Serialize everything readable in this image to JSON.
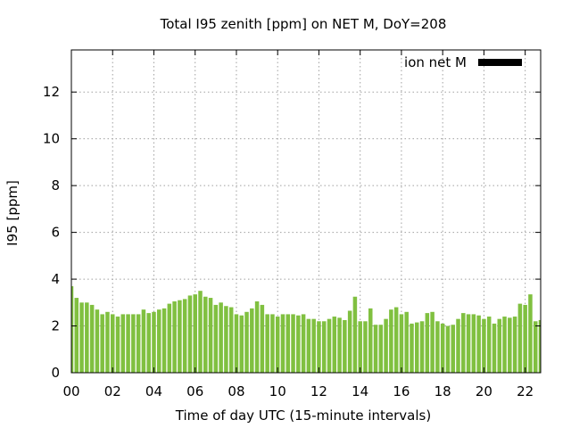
{
  "chart_data": {
    "type": "bar",
    "title": "Total I95 zenith [ppm] on NET M, DoY=208",
    "xlabel": "Time of day UTC (15-minute intervals)",
    "ylabel": "I95 [ppm]",
    "ylim": [
      0,
      13.8
    ],
    "xlim": [
      0,
      22.75
    ],
    "yticks": [
      0,
      2,
      4,
      6,
      8,
      10,
      12
    ],
    "xticks": [
      0,
      2,
      4,
      6,
      8,
      10,
      12,
      14,
      16,
      18,
      20,
      22
    ],
    "xtick_labels": [
      "00",
      "02",
      "04",
      "06",
      "08",
      "10",
      "12",
      "14",
      "16",
      "18",
      "20",
      "22"
    ],
    "grid": true,
    "legend_position": "top-right",
    "interval_hours": 0.25,
    "series": [
      {
        "name": "ion net M",
        "color": "#80c040",
        "legend_color": "#000000",
        "values": [
          3.7,
          3.2,
          3.0,
          3.0,
          2.9,
          2.7,
          2.5,
          2.6,
          2.5,
          2.4,
          2.5,
          2.5,
          2.5,
          2.5,
          2.7,
          2.55,
          2.6,
          2.7,
          2.75,
          2.95,
          3.05,
          3.1,
          3.15,
          3.3,
          3.35,
          3.5,
          3.25,
          3.2,
          2.9,
          3.0,
          2.85,
          2.8,
          2.5,
          2.45,
          2.6,
          2.75,
          3.05,
          2.9,
          2.5,
          2.5,
          2.4,
          2.5,
          2.5,
          2.5,
          2.45,
          2.5,
          2.3,
          2.3,
          2.2,
          2.2,
          2.3,
          2.4,
          2.35,
          2.25,
          2.65,
          3.25,
          2.2,
          2.2,
          2.75,
          2.05,
          2.05,
          2.3,
          2.7,
          2.8,
          2.5,
          2.6,
          2.1,
          2.15,
          2.2,
          2.55,
          2.6,
          2.2,
          2.1,
          2.0,
          2.05,
          2.3,
          2.55,
          2.5,
          2.5,
          2.45,
          2.3,
          2.4,
          2.1,
          2.3,
          2.4,
          2.35,
          2.4,
          2.95,
          2.9,
          3.35,
          2.2,
          2.25
        ]
      }
    ]
  }
}
